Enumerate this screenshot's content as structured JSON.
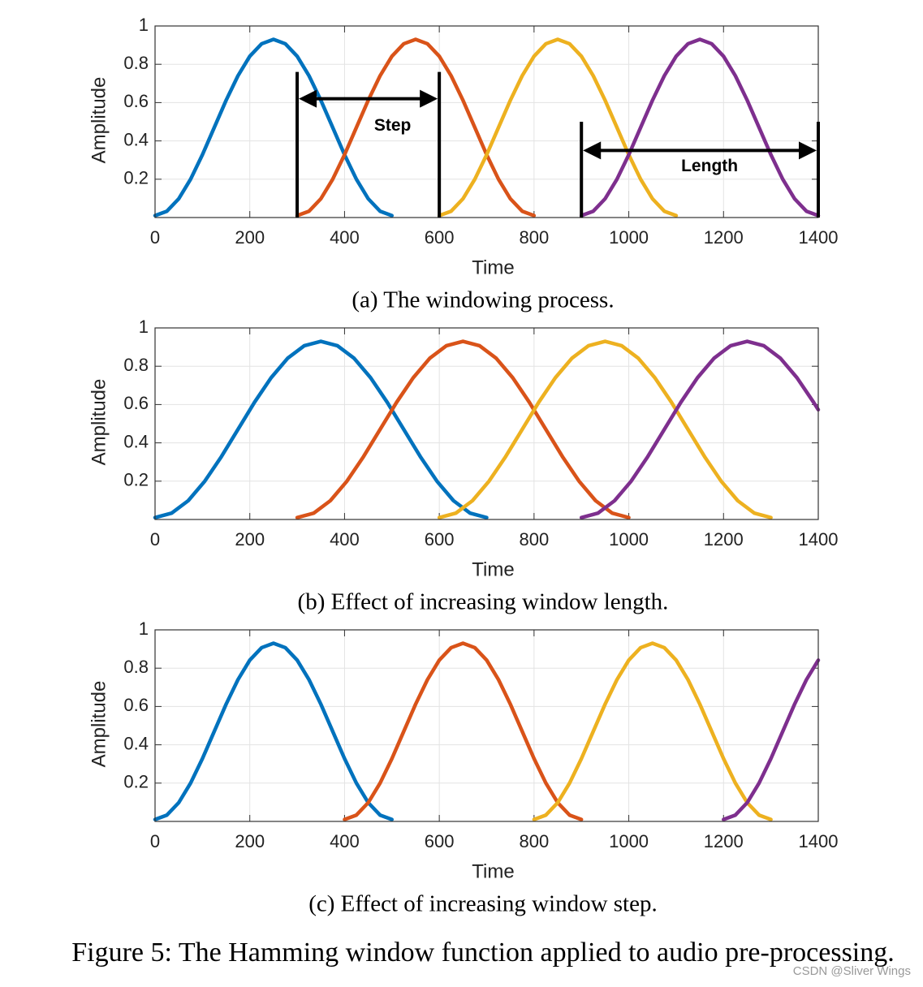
{
  "chart_data": [
    {
      "type": "line",
      "caption": "(a) The windowing process.",
      "xlabel": "Time",
      "ylabel": "Amplitude",
      "xlim": [
        0,
        1400
      ],
      "xticks": [
        0,
        200,
        400,
        600,
        800,
        1000,
        1200,
        1400
      ],
      "ylim": [
        0,
        1
      ],
      "yticks": [
        0.2,
        0.4,
        0.6,
        0.8,
        1
      ],
      "grid": true,
      "series": [
        {
          "color": "#0072BD",
          "x": [
            0,
            25,
            50,
            75,
            100,
            125,
            150,
            175,
            200,
            225,
            250,
            275,
            300,
            325,
            350,
            375,
            400,
            425,
            450,
            475,
            500
          ],
          "values": [
            0.01,
            0.033,
            0.098,
            0.2,
            0.328,
            0.47,
            0.612,
            0.74,
            0.842,
            0.907,
            0.93,
            0.907,
            0.842,
            0.74,
            0.612,
            0.47,
            0.328,
            0.2,
            0.098,
            0.033,
            0.01
          ]
        },
        {
          "color": "#D95319",
          "x": [
            300,
            325,
            350,
            375,
            400,
            425,
            450,
            475,
            500,
            525,
            550,
            575,
            600,
            625,
            650,
            675,
            700,
            725,
            750,
            775,
            800
          ],
          "values": [
            0.01,
            0.033,
            0.098,
            0.2,
            0.328,
            0.47,
            0.612,
            0.74,
            0.842,
            0.907,
            0.93,
            0.907,
            0.842,
            0.74,
            0.612,
            0.47,
            0.328,
            0.2,
            0.098,
            0.033,
            0.01
          ]
        },
        {
          "color": "#EDB120",
          "x": [
            600,
            625,
            650,
            675,
            700,
            725,
            750,
            775,
            800,
            825,
            850,
            875,
            900,
            925,
            950,
            975,
            1000,
            1025,
            1050,
            1075,
            1100
          ],
          "values": [
            0.01,
            0.033,
            0.098,
            0.2,
            0.328,
            0.47,
            0.612,
            0.74,
            0.842,
            0.907,
            0.93,
            0.907,
            0.842,
            0.74,
            0.612,
            0.47,
            0.328,
            0.2,
            0.098,
            0.033,
            0.01
          ]
        },
        {
          "color": "#7E2F8E",
          "x": [
            900,
            925,
            950,
            975,
            1000,
            1025,
            1050,
            1075,
            1100,
            1125,
            1150,
            1175,
            1200,
            1225,
            1250,
            1275,
            1300,
            1325,
            1350,
            1375,
            1400
          ],
          "values": [
            0.01,
            0.033,
            0.098,
            0.2,
            0.328,
            0.47,
            0.612,
            0.74,
            0.842,
            0.907,
            0.93,
            0.907,
            0.842,
            0.74,
            0.612,
            0.47,
            0.328,
            0.2,
            0.098,
            0.033,
            0.01
          ]
        }
      ],
      "annotations": [
        {
          "text": "Step",
          "x": [
            300,
            600
          ],
          "y": 0.62,
          "top": 0.76
        },
        {
          "text": "Length",
          "x": [
            900,
            1400
          ],
          "y": 0.35,
          "top": 0.5
        }
      ]
    },
    {
      "type": "line",
      "caption": "(b) Effect of increasing window length.",
      "xlabel": "Time",
      "ylabel": "Amplitude",
      "xlim": [
        0,
        1400
      ],
      "xticks": [
        0,
        200,
        400,
        600,
        800,
        1000,
        1200,
        1400
      ],
      "ylim": [
        0,
        1
      ],
      "yticks": [
        0.2,
        0.4,
        0.6,
        0.8,
        1
      ],
      "grid": true,
      "series": [
        {
          "color": "#0072BD",
          "x": [
            0,
            35,
            70,
            105,
            140,
            175,
            210,
            245,
            280,
            315,
            350,
            385,
            420,
            455,
            490,
            525,
            560,
            595,
            630,
            665,
            700
          ],
          "values": [
            0.01,
            0.033,
            0.098,
            0.2,
            0.328,
            0.47,
            0.612,
            0.74,
            0.842,
            0.907,
            0.93,
            0.907,
            0.842,
            0.74,
            0.612,
            0.47,
            0.328,
            0.2,
            0.098,
            0.033,
            0.01
          ]
        },
        {
          "color": "#D95319",
          "x": [
            300,
            335,
            370,
            405,
            440,
            475,
            510,
            545,
            580,
            615,
            650,
            685,
            720,
            755,
            790,
            825,
            860,
            895,
            930,
            965,
            1000
          ],
          "values": [
            0.01,
            0.033,
            0.098,
            0.2,
            0.328,
            0.47,
            0.612,
            0.74,
            0.842,
            0.907,
            0.93,
            0.907,
            0.842,
            0.74,
            0.612,
            0.47,
            0.328,
            0.2,
            0.098,
            0.033,
            0.01
          ]
        },
        {
          "color": "#EDB120",
          "x": [
            600,
            635,
            670,
            705,
            740,
            775,
            810,
            845,
            880,
            915,
            950,
            985,
            1020,
            1055,
            1090,
            1125,
            1160,
            1195,
            1230,
            1265,
            1300
          ],
          "values": [
            0.01,
            0.033,
            0.098,
            0.2,
            0.328,
            0.47,
            0.612,
            0.74,
            0.842,
            0.907,
            0.93,
            0.907,
            0.842,
            0.74,
            0.612,
            0.47,
            0.328,
            0.2,
            0.098,
            0.033,
            0.01
          ]
        },
        {
          "color": "#7E2F8E",
          "x": [
            900,
            935,
            970,
            1005,
            1040,
            1075,
            1110,
            1145,
            1180,
            1215,
            1250,
            1285,
            1320,
            1355,
            1390,
            1400
          ],
          "values": [
            0.01,
            0.033,
            0.098,
            0.2,
            0.328,
            0.47,
            0.612,
            0.74,
            0.842,
            0.907,
            0.93,
            0.907,
            0.842,
            0.74,
            0.612,
            0.573
          ]
        }
      ]
    },
    {
      "type": "line",
      "caption": "(c) Effect of increasing window step.",
      "xlabel": "Time",
      "ylabel": "Amplitude",
      "xlim": [
        0,
        1400
      ],
      "xticks": [
        0,
        200,
        400,
        600,
        800,
        1000,
        1200,
        1400
      ],
      "ylim": [
        0,
        1
      ],
      "yticks": [
        0.2,
        0.4,
        0.6,
        0.8,
        1
      ],
      "grid": true,
      "series": [
        {
          "color": "#0072BD",
          "x": [
            0,
            25,
            50,
            75,
            100,
            125,
            150,
            175,
            200,
            225,
            250,
            275,
            300,
            325,
            350,
            375,
            400,
            425,
            450,
            475,
            500
          ],
          "values": [
            0.01,
            0.033,
            0.098,
            0.2,
            0.328,
            0.47,
            0.612,
            0.74,
            0.842,
            0.907,
            0.93,
            0.907,
            0.842,
            0.74,
            0.612,
            0.47,
            0.328,
            0.2,
            0.098,
            0.033,
            0.01
          ]
        },
        {
          "color": "#D95319",
          "x": [
            400,
            425,
            450,
            475,
            500,
            525,
            550,
            575,
            600,
            625,
            650,
            675,
            700,
            725,
            750,
            775,
            800,
            825,
            850,
            875,
            900
          ],
          "values": [
            0.01,
            0.033,
            0.098,
            0.2,
            0.328,
            0.47,
            0.612,
            0.74,
            0.842,
            0.907,
            0.93,
            0.907,
            0.842,
            0.74,
            0.612,
            0.47,
            0.328,
            0.2,
            0.098,
            0.033,
            0.01
          ]
        },
        {
          "color": "#EDB120",
          "x": [
            800,
            825,
            850,
            875,
            900,
            925,
            950,
            975,
            1000,
            1025,
            1050,
            1075,
            1100,
            1125,
            1150,
            1175,
            1200,
            1225,
            1250,
            1275,
            1300
          ],
          "values": [
            0.01,
            0.033,
            0.098,
            0.2,
            0.328,
            0.47,
            0.612,
            0.74,
            0.842,
            0.907,
            0.93,
            0.907,
            0.842,
            0.74,
            0.612,
            0.47,
            0.328,
            0.2,
            0.098,
            0.033,
            0.01
          ]
        },
        {
          "color": "#7E2F8E",
          "x": [
            1200,
            1225,
            1250,
            1275,
            1300,
            1325,
            1350,
            1375,
            1400
          ],
          "values": [
            0.01,
            0.033,
            0.098,
            0.2,
            0.328,
            0.47,
            0.612,
            0.74,
            0.842
          ]
        }
      ]
    }
  ],
  "figure_caption": "Figure 5: The Hamming window function applied to audio pre-processing.",
  "watermark": "CSDN @Sliver  Wings"
}
